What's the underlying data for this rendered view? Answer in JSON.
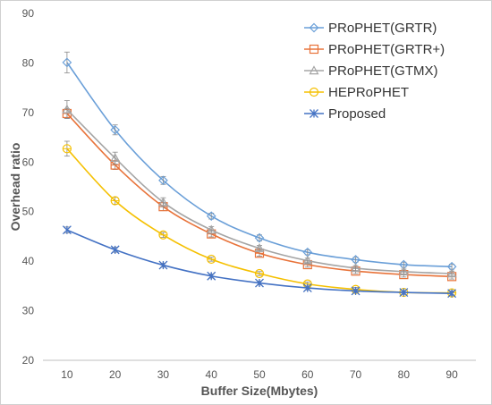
{
  "chart_data": {
    "type": "line",
    "title": "",
    "xlabel": "Buffer Size(Mbytes)",
    "ylabel": "Overhead ratio",
    "x": [
      10,
      20,
      30,
      40,
      50,
      60,
      70,
      80,
      90
    ],
    "x_ticks": [
      "10",
      "20",
      "30",
      "40",
      "50",
      "60",
      "70",
      "80",
      "90"
    ],
    "ylim": [
      20,
      90
    ],
    "y_ticks": [
      "20",
      "30",
      "40",
      "50",
      "60",
      "70",
      "80",
      "90"
    ],
    "grid": false,
    "legend_position": "top-right",
    "series": [
      {
        "name": "PRoPHET(GRTR)",
        "color": "#6a9fd8",
        "marker": "diamond",
        "values": [
          80.1,
          66.5,
          56.3,
          49.1,
          44.7,
          41.8,
          40.3,
          39.3,
          38.9
        ],
        "error": [
          2.1,
          1.0,
          0.8,
          0.6,
          0.6,
          0.5,
          0.5,
          0.5,
          0.5
        ]
      },
      {
        "name": "PRoPHET(GRTR+)",
        "color": "#e8733a",
        "marker": "square",
        "values": [
          69.8,
          59.4,
          51.0,
          45.5,
          41.6,
          39.3,
          38.0,
          37.3,
          36.9
        ],
        "error": [
          1.0,
          0.9,
          0.8,
          0.6,
          0.6,
          0.5,
          0.5,
          0.5,
          0.5
        ]
      },
      {
        "name": "PRoPHET(GTMX)",
        "color": "#a5a5a5",
        "marker": "triangle",
        "values": [
          70.6,
          60.8,
          51.9,
          46.3,
          42.6,
          40.1,
          38.6,
          37.9,
          37.5
        ],
        "error": [
          1.8,
          1.2,
          0.9,
          0.7,
          0.6,
          0.5,
          0.5,
          0.5,
          0.5
        ]
      },
      {
        "name": "HEPRoPHET",
        "color": "#f5c000",
        "marker": "circle",
        "values": [
          62.7,
          52.2,
          45.3,
          40.4,
          37.5,
          35.4,
          34.3,
          33.7,
          33.6
        ],
        "error": [
          1.5,
          0.7,
          0.5,
          0.4,
          0.4,
          0.4,
          0.4,
          0.4,
          0.4
        ]
      },
      {
        "name": "Proposed",
        "color": "#4472c4",
        "marker": "asterisk",
        "values": [
          46.3,
          42.3,
          39.2,
          37.0,
          35.6,
          34.6,
          34.0,
          33.7,
          33.5
        ],
        "error": [
          0.6,
          0.5,
          0.4,
          0.4,
          0.4,
          0.4,
          0.4,
          0.4,
          0.4
        ]
      }
    ]
  }
}
